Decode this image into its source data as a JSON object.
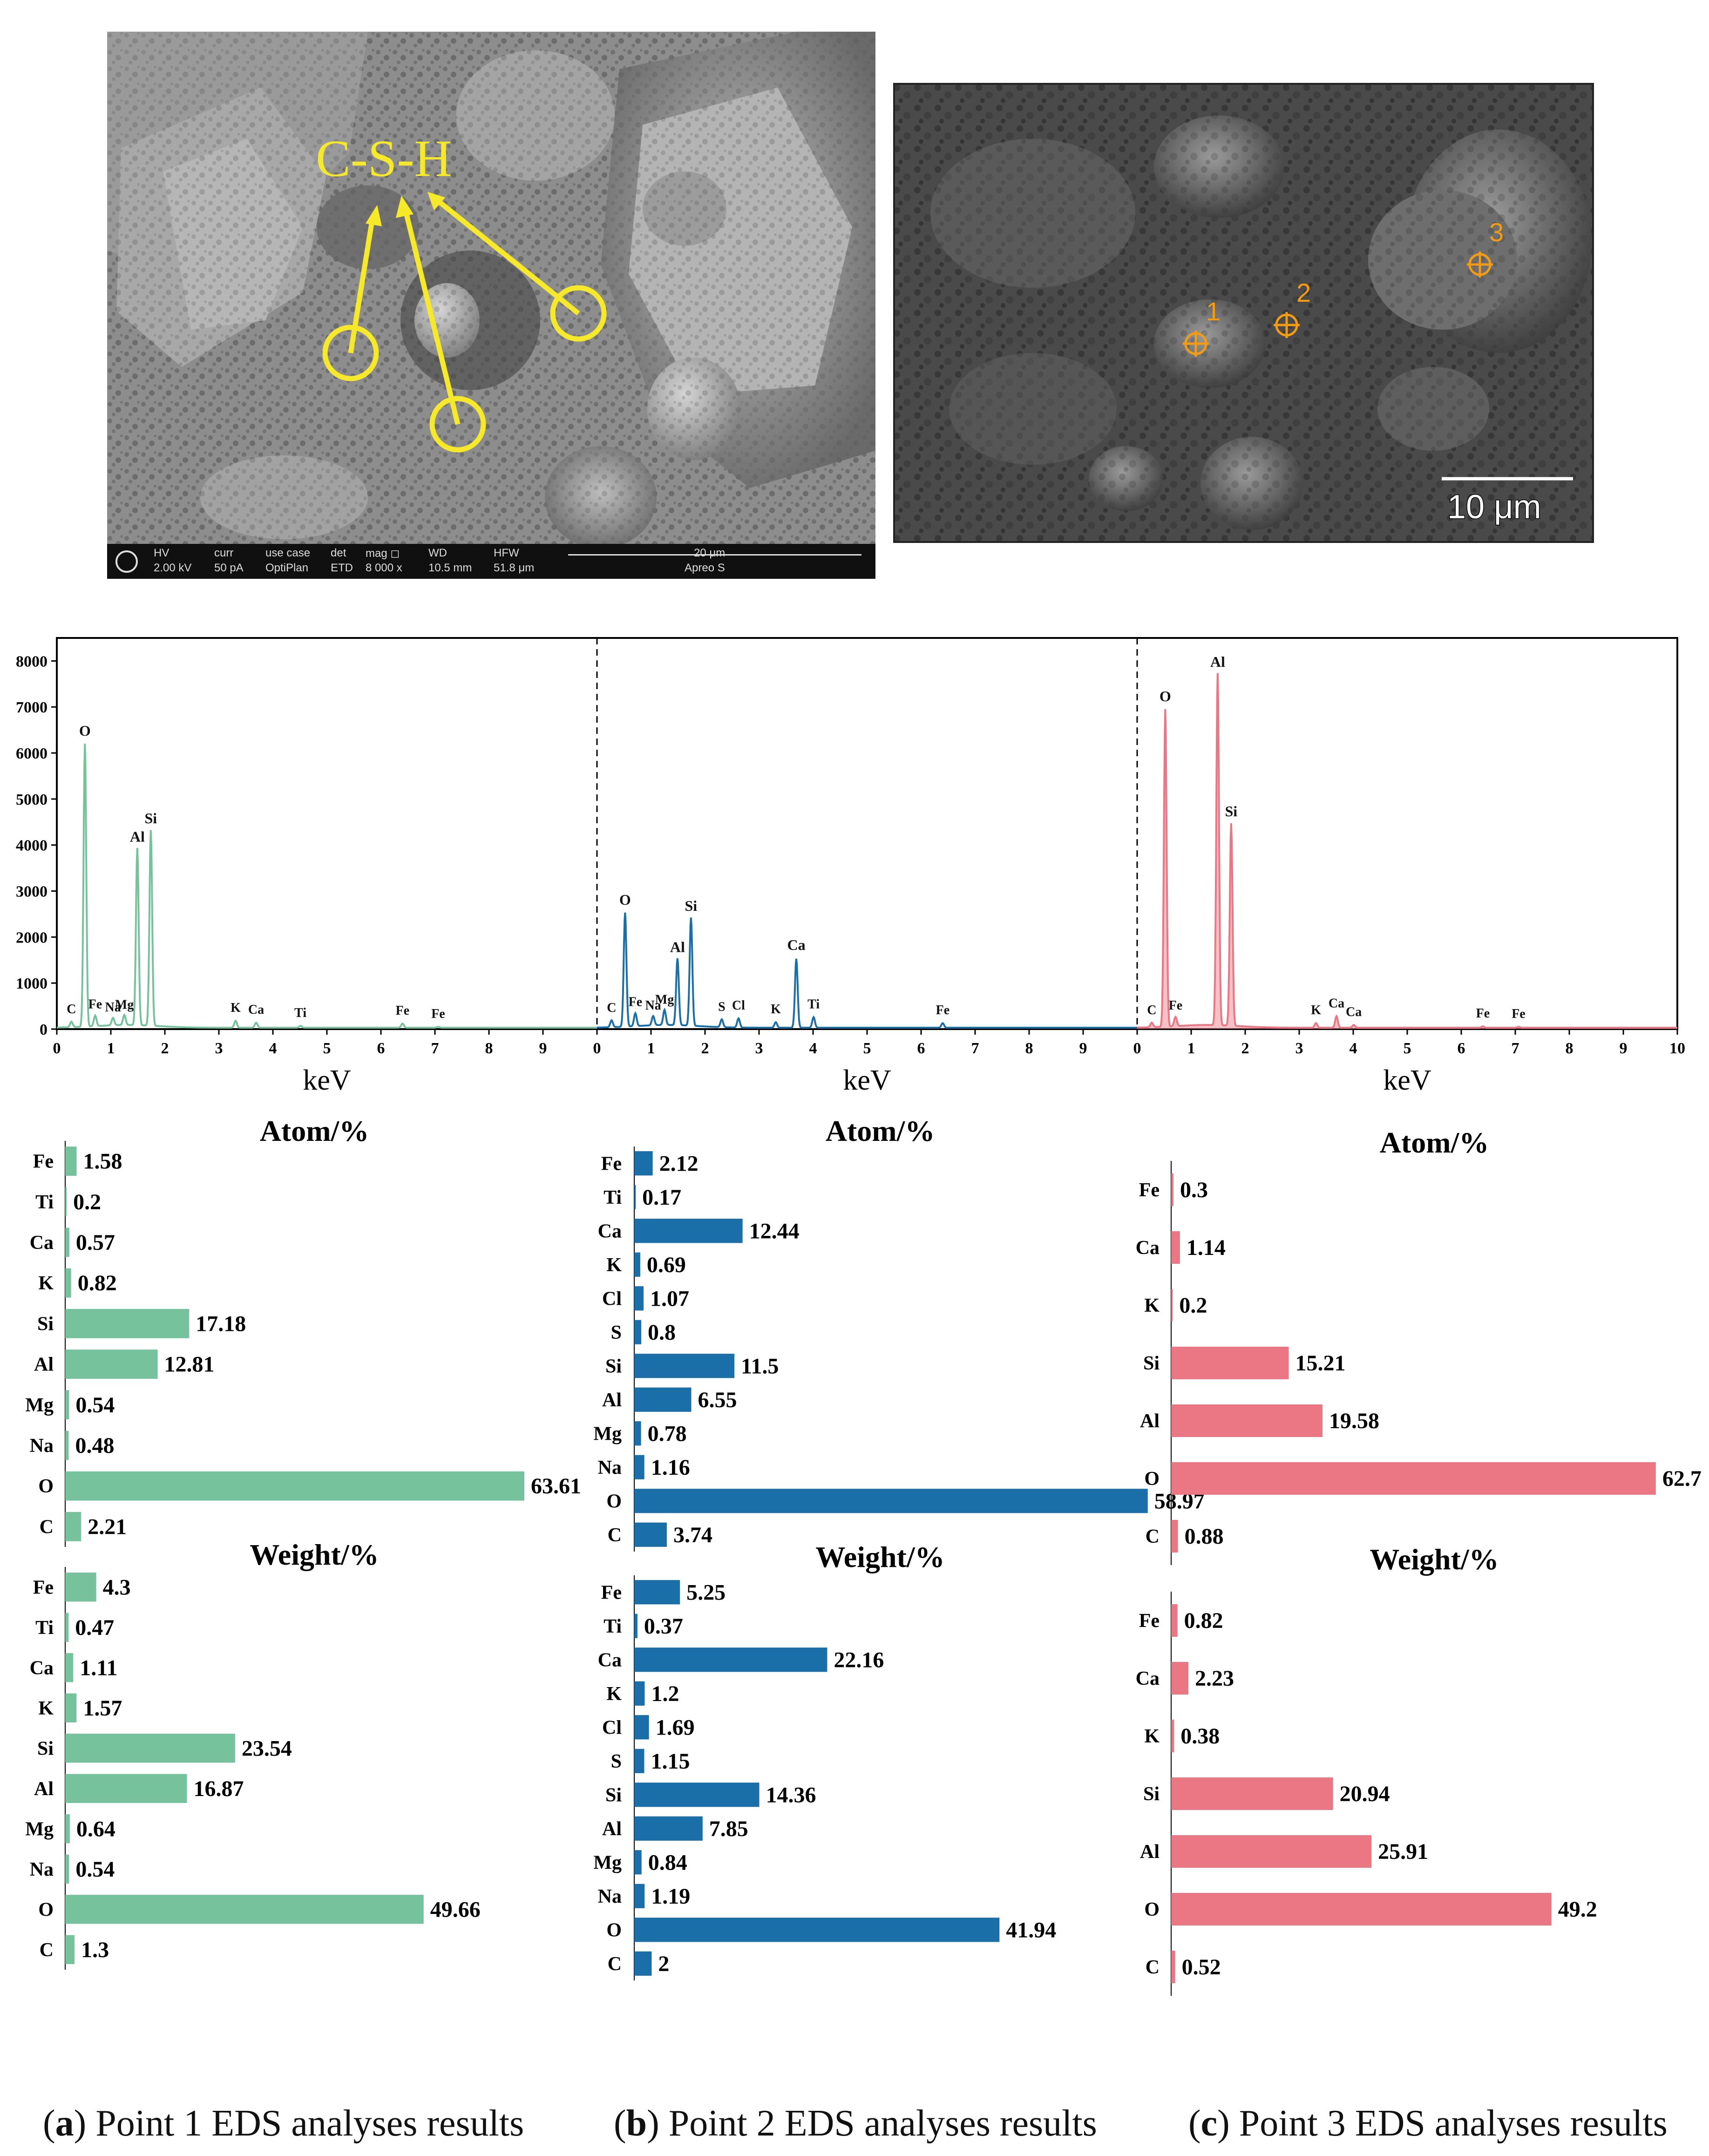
{
  "images": {
    "sem_left": {
      "annotation": "C-S-H",
      "info_bar": {
        "row1": [
          "HV",
          "curr",
          "use case",
          "det",
          "mag ◻",
          "WD",
          "HFW",
          "20 μm"
        ],
        "row2": [
          "2.00 kV",
          "50 pA",
          "OptiPlan",
          "ETD",
          "8 000 x",
          "10.5 mm",
          "51.8 μm",
          "Apreo S"
        ]
      }
    },
    "sem_right": {
      "scale_label": "10 μm",
      "point_labels": [
        "1",
        "2",
        "3"
      ]
    }
  },
  "colors": {
    "point1": "#76c29c",
    "point2": "#1b6fa8",
    "point3": "#ec7784",
    "annotation": "#f5e92a",
    "marker": "#f39c12"
  },
  "chart_data": [
    {
      "type": "line",
      "panel": "Point 1 spectrum",
      "xlabel": "keV",
      "xlim": [
        0,
        10
      ],
      "ylim": [
        0,
        8500
      ],
      "x_ticks": [
        0,
        1,
        2,
        3,
        4,
        5,
        6,
        7,
        8,
        9
      ],
      "y_ticks": [
        0,
        1000,
        2000,
        3000,
        4000,
        5000,
        6000,
        7000,
        8000
      ],
      "peaks": [
        {
          "label": "C",
          "x": 0.27,
          "y": 120
        },
        {
          "label": "O",
          "x": 0.52,
          "y": 6150
        },
        {
          "label": "Fe",
          "x": 0.71,
          "y": 230
        },
        {
          "label": "Na",
          "x": 1.04,
          "y": 160
        },
        {
          "label": "Mg",
          "x": 1.25,
          "y": 220
        },
        {
          "label": "Al",
          "x": 1.49,
          "y": 3850
        },
        {
          "label": "Si",
          "x": 1.74,
          "y": 4250
        },
        {
          "label": "K",
          "x": 3.31,
          "y": 150
        },
        {
          "label": "Ca",
          "x": 3.69,
          "y": 110
        },
        {
          "label": "Ti",
          "x": 4.51,
          "y": 40
        },
        {
          "label": "Fe",
          "x": 6.4,
          "y": 90
        },
        {
          "label": "Fe",
          "x": 7.06,
          "y": 20
        }
      ]
    },
    {
      "type": "line",
      "panel": "Point 2 spectrum",
      "xlabel": "keV",
      "xlim": [
        0,
        10
      ],
      "ylim": [
        0,
        8500
      ],
      "x_ticks": [
        0,
        1,
        2,
        3,
        4,
        5,
        6,
        7,
        8,
        9
      ],
      "peaks": [
        {
          "label": "C",
          "x": 0.27,
          "y": 150
        },
        {
          "label": "O",
          "x": 0.52,
          "y": 2480
        },
        {
          "label": "Fe",
          "x": 0.71,
          "y": 280
        },
        {
          "label": "Na",
          "x": 1.04,
          "y": 200
        },
        {
          "label": "Mg",
          "x": 1.25,
          "y": 330
        },
        {
          "label": "Al",
          "x": 1.49,
          "y": 1450
        },
        {
          "label": "Si",
          "x": 1.74,
          "y": 2350
        },
        {
          "label": "S",
          "x": 2.31,
          "y": 170
        },
        {
          "label": "Cl",
          "x": 2.62,
          "y": 200
        },
        {
          "label": "K",
          "x": 3.31,
          "y": 120
        },
        {
          "label": "Ca",
          "x": 3.69,
          "y": 1500
        },
        {
          "label": "Ti",
          "x": 4.01,
          "y": 230
        },
        {
          "label": "Fe",
          "x": 6.4,
          "y": 100
        }
      ]
    },
    {
      "type": "area",
      "panel": "Point 3 spectrum",
      "xlabel": "keV",
      "xlim": [
        0,
        10
      ],
      "ylim": [
        0,
        8500
      ],
      "x_ticks": [
        0,
        1,
        2,
        3,
        4,
        5,
        6,
        7,
        8,
        9,
        10
      ],
      "peaks": [
        {
          "label": "C",
          "x": 0.27,
          "y": 100
        },
        {
          "label": "O",
          "x": 0.52,
          "y": 6900
        },
        {
          "label": "Fe",
          "x": 0.71,
          "y": 200
        },
        {
          "label": "Al",
          "x": 1.49,
          "y": 7650
        },
        {
          "label": "Si",
          "x": 1.74,
          "y": 4400
        },
        {
          "label": "K",
          "x": 3.31,
          "y": 100
        },
        {
          "label": "Ca",
          "x": 3.69,
          "y": 250
        },
        {
          "label": "Ca",
          "x": 4.01,
          "y": 60
        },
        {
          "label": "Fe",
          "x": 6.4,
          "y": 30
        },
        {
          "label": "Fe",
          "x": 7.06,
          "y": 20
        }
      ]
    },
    {
      "type": "bar",
      "title": "Atom/%",
      "point": 1,
      "categories": [
        "Fe",
        "Ti",
        "Ca",
        "K",
        "Si",
        "Al",
        "Mg",
        "Na",
        "O",
        "C"
      ],
      "values": [
        1.58,
        0.2,
        0.57,
        0.82,
        17.18,
        12.81,
        0.54,
        0.48,
        63.61,
        2.21
      ]
    },
    {
      "type": "bar",
      "title": "Weight/%",
      "point": 1,
      "categories": [
        "Fe",
        "Ti",
        "Ca",
        "K",
        "Si",
        "Al",
        "Mg",
        "Na",
        "O",
        "C"
      ],
      "values": [
        4.3,
        0.47,
        1.11,
        1.57,
        23.54,
        16.87,
        0.64,
        0.54,
        49.66,
        1.3
      ]
    },
    {
      "type": "bar",
      "title": "Atom/%",
      "point": 2,
      "categories": [
        "Fe",
        "Ti",
        "Ca",
        "K",
        "Cl",
        "S",
        "Si",
        "Al",
        "Mg",
        "Na",
        "O",
        "C"
      ],
      "values": [
        2.12,
        0.17,
        12.44,
        0.69,
        1.07,
        0.8,
        11.5,
        6.55,
        0.78,
        1.16,
        58.97,
        3.74
      ]
    },
    {
      "type": "bar",
      "title": "Weight/%",
      "point": 2,
      "categories": [
        "Fe",
        "Ti",
        "Ca",
        "K",
        "Cl",
        "S",
        "Si",
        "Al",
        "Mg",
        "Na",
        "O",
        "C"
      ],
      "values": [
        5.25,
        0.37,
        22.16,
        1.2,
        1.69,
        1.15,
        14.36,
        7.85,
        0.84,
        1.19,
        41.94,
        2
      ]
    },
    {
      "type": "bar",
      "title": "Atom/%",
      "point": 3,
      "categories": [
        "Fe",
        "Ca",
        "K",
        "Si",
        "Al",
        "O",
        "C"
      ],
      "values": [
        0.3,
        1.14,
        0.2,
        15.21,
        19.58,
        62.7,
        0.88
      ]
    },
    {
      "type": "bar",
      "title": "Weight/%",
      "point": 3,
      "categories": [
        "Fe",
        "Ca",
        "K",
        "Si",
        "Al",
        "O",
        "C"
      ],
      "values": [
        0.82,
        2.23,
        0.38,
        20.94,
        25.91,
        49.2,
        0.52
      ]
    }
  ],
  "captions": [
    {
      "letter": "a",
      "text": "Point 1 EDS analyses results"
    },
    {
      "letter": "b",
      "text": "Point 2 EDS analyses results"
    },
    {
      "letter": "c",
      "text": "Point 3 EDS analyses results"
    }
  ]
}
